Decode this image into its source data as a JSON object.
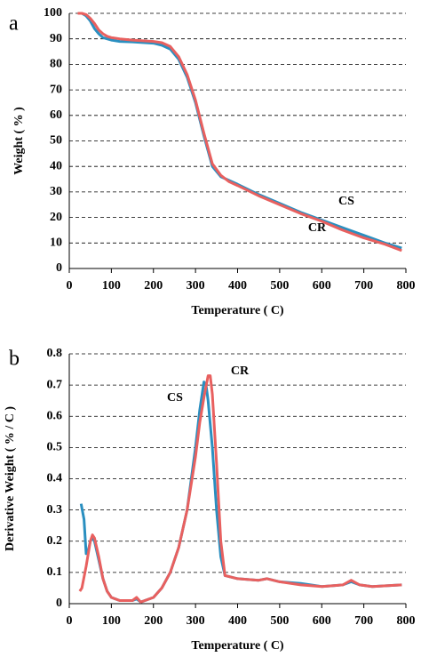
{
  "chart_data": [
    {
      "type": "line",
      "panel_label": "a",
      "xlabel": "Temperature ( C)",
      "ylabel": "Weight ( % )",
      "xlim": [
        0,
        800
      ],
      "xticks": [
        0,
        100,
        200,
        300,
        400,
        500,
        600,
        700,
        800
      ],
      "ylim": [
        0,
        100
      ],
      "yticks": [
        0,
        10,
        20,
        30,
        40,
        50,
        60,
        70,
        80,
        90,
        100
      ],
      "grid": true,
      "annotations": [
        "CS",
        "CR"
      ],
      "series": [
        {
          "name": "CS",
          "color": "#2a8fc0",
          "x": [
            20,
            30,
            40,
            50,
            60,
            70,
            80,
            90,
            100,
            120,
            150,
            200,
            220,
            240,
            260,
            280,
            300,
            320,
            340,
            360,
            380,
            400,
            450,
            500,
            550,
            600,
            650,
            700,
            750,
            790
          ],
          "values": [
            100,
            100,
            99,
            97,
            94,
            92,
            90.5,
            90,
            89.5,
            89,
            88.8,
            88.3,
            87.5,
            86,
            82,
            75,
            65,
            52,
            40,
            36,
            34.5,
            33,
            29,
            25.5,
            22,
            19,
            16,
            13,
            10,
            8
          ]
        },
        {
          "name": "CR",
          "color": "#e8605f",
          "x": [
            20,
            30,
            40,
            50,
            60,
            70,
            80,
            90,
            100,
            120,
            150,
            200,
            220,
            240,
            260,
            280,
            300,
            320,
            340,
            360,
            380,
            400,
            450,
            500,
            550,
            600,
            650,
            700,
            750,
            790
          ],
          "values": [
            100,
            100,
            99.5,
            98,
            96,
            93.5,
            92,
            91,
            90.5,
            90,
            89.5,
            89,
            88.5,
            87,
            83,
            76,
            66,
            53,
            41,
            36.5,
            34,
            32.5,
            28.5,
            25,
            21.5,
            18.5,
            15,
            12,
            9.5,
            7
          ]
        }
      ]
    },
    {
      "type": "line",
      "panel_label": "b",
      "xlabel": "Temperature ( C)",
      "ylabel": "Derivative Weight ( % / C )",
      "xlim": [
        0,
        800
      ],
      "xticks": [
        0,
        100,
        200,
        300,
        400,
        500,
        600,
        700,
        800
      ],
      "ylim": [
        0,
        0.8
      ],
      "yticks": [
        0,
        0.1,
        0.2,
        0.3,
        0.4,
        0.5,
        0.6,
        0.7,
        0.8
      ],
      "grid": true,
      "annotations": [
        "CR",
        "CS"
      ],
      "series": [
        {
          "name": "CS",
          "color": "#2a8fc0",
          "x": [
            28,
            35,
            40,
            45,
            50,
            55,
            60,
            70,
            80,
            90,
            100,
            120,
            150,
            160,
            170,
            200,
            220,
            240,
            260,
            280,
            300,
            310,
            320,
            325,
            330,
            340,
            350,
            360,
            370,
            400,
            450,
            470,
            500,
            550,
            600,
            650,
            670,
            690,
            720,
            790
          ],
          "values": [
            0.32,
            0.27,
            0.16,
            0.17,
            0.2,
            0.21,
            0.2,
            0.14,
            0.08,
            0.04,
            0.02,
            0.01,
            0.01,
            0.015,
            0.005,
            0.02,
            0.05,
            0.1,
            0.18,
            0.3,
            0.5,
            0.62,
            0.71,
            0.7,
            0.65,
            0.5,
            0.3,
            0.15,
            0.09,
            0.08,
            0.075,
            0.08,
            0.07,
            0.065,
            0.055,
            0.06,
            0.07,
            0.06,
            0.055,
            0.06
          ]
        },
        {
          "name": "CR",
          "color": "#e8605f",
          "x": [
            25,
            30,
            40,
            50,
            55,
            60,
            70,
            80,
            90,
            100,
            120,
            150,
            160,
            170,
            200,
            220,
            240,
            260,
            280,
            300,
            310,
            320,
            330,
            335,
            340,
            350,
            360,
            370,
            400,
            450,
            470,
            500,
            550,
            600,
            650,
            670,
            690,
            720,
            790
          ],
          "values": [
            0.04,
            0.05,
            0.12,
            0.2,
            0.22,
            0.21,
            0.15,
            0.08,
            0.04,
            0.02,
            0.01,
            0.01,
            0.02,
            0.005,
            0.02,
            0.05,
            0.1,
            0.18,
            0.3,
            0.47,
            0.58,
            0.66,
            0.73,
            0.73,
            0.67,
            0.45,
            0.2,
            0.09,
            0.08,
            0.075,
            0.08,
            0.07,
            0.06,
            0.055,
            0.06,
            0.075,
            0.06,
            0.055,
            0.06
          ]
        }
      ]
    }
  ]
}
